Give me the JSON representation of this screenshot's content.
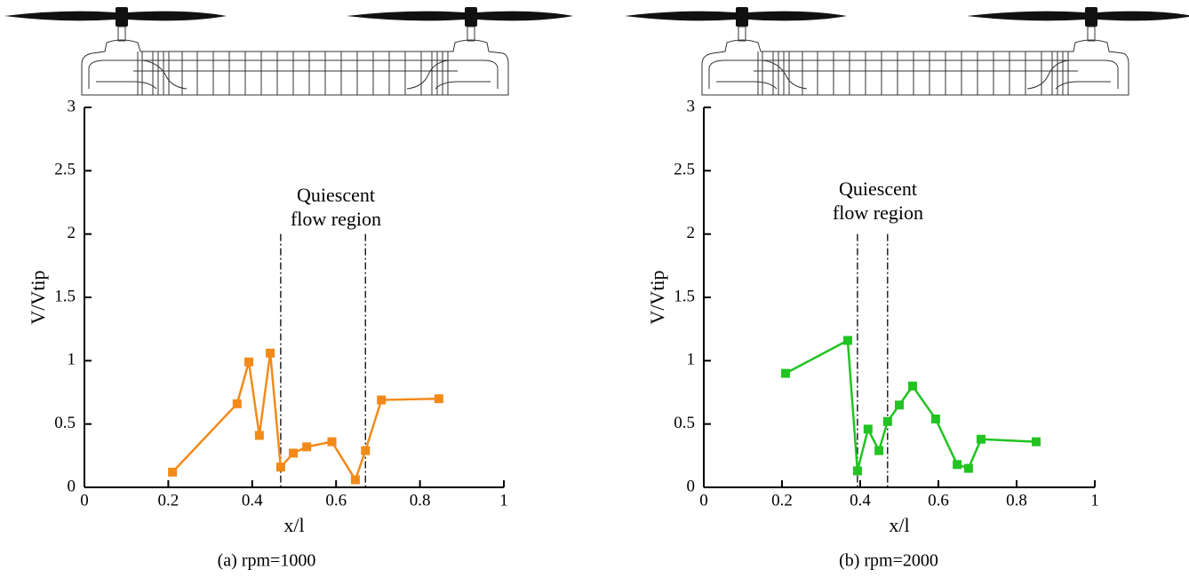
{
  "chart_data": [
    {
      "type": "line",
      "caption": "(a) rpm=1000",
      "xlabel": "x/l",
      "ylabel": "V/Vtip",
      "annotation": [
        "Quiescent",
        "flow region"
      ],
      "region_bounds": [
        0.468,
        0.67
      ],
      "color": "#f28a1a",
      "x": [
        0.21,
        0.364,
        0.392,
        0.417,
        0.443,
        0.468,
        0.498,
        0.53,
        0.59,
        0.646,
        0.67,
        0.708,
        0.845
      ],
      "values": [
        0.12,
        0.66,
        0.99,
        0.41,
        1.06,
        0.16,
        0.27,
        0.32,
        0.36,
        0.06,
        0.29,
        0.69,
        0.7
      ],
      "xlim": [
        0,
        1
      ],
      "xticks": [
        0,
        0.2,
        0.4,
        0.6,
        0.8,
        1
      ],
      "ylim": [
        0,
        3
      ],
      "yticks": [
        0,
        0.5,
        1,
        1.5,
        2,
        2.5,
        3
      ]
    },
    {
      "type": "line",
      "caption": "(b) rpm=2000",
      "xlabel": "x/l",
      "ylabel": "V/Vtip",
      "annotation": [
        "Quiescent",
        "flow region"
      ],
      "region_bounds": [
        0.393,
        0.47
      ],
      "color": "#22c322",
      "x": [
        0.209,
        0.368,
        0.393,
        0.42,
        0.448,
        0.47,
        0.5,
        0.534,
        0.593,
        0.648,
        0.677,
        0.709,
        0.85
      ],
      "values": [
        0.9,
        1.16,
        0.13,
        0.46,
        0.29,
        0.52,
        0.65,
        0.8,
        0.54,
        0.18,
        0.15,
        0.38,
        0.36
      ],
      "xlim": [
        0,
        1
      ],
      "xticks": [
        0,
        0.2,
        0.4,
        0.6,
        0.8,
        1
      ],
      "ylim": [
        0,
        3
      ],
      "yticks": [
        0,
        0.5,
        1,
        1.5,
        2,
        2.5,
        3
      ]
    }
  ]
}
